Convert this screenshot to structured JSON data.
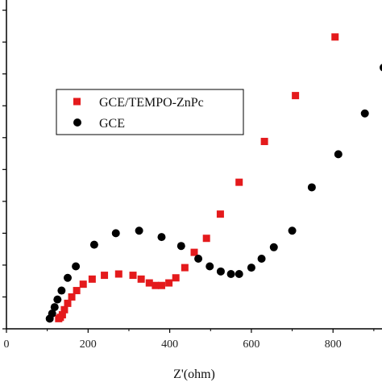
{
  "chart_data": {
    "type": "scatter",
    "title": "",
    "xlabel": "Z'(ohm)",
    "ylabel": "",
    "xlim": [
      0,
      920
    ],
    "ylim": [
      0,
      1290
    ],
    "x_ticks": [
      0,
      200,
      400,
      600,
      800
    ],
    "x_tick_labels": [
      "0",
      "200",
      "400",
      "600",
      "800"
    ],
    "y_minor_ticks": [
      0,
      125,
      250,
      375,
      500,
      625,
      750,
      875,
      1000,
      1125,
      1250
    ],
    "grid": false,
    "legend_position": "upper-left",
    "series": [
      {
        "name": "GCE/TEMPO-ZnPc",
        "marker": "square",
        "color": "#e41a1c",
        "points": [
          [
            128,
            40
          ],
          [
            132,
            45
          ],
          [
            137,
            55
          ],
          [
            142,
            75
          ],
          [
            150,
            100
          ],
          [
            160,
            125
          ],
          [
            172,
            150
          ],
          [
            188,
            175
          ],
          [
            210,
            195
          ],
          [
            240,
            210
          ],
          [
            275,
            215
          ],
          [
            310,
            210
          ],
          [
            330,
            195
          ],
          [
            350,
            180
          ],
          [
            365,
            170
          ],
          [
            380,
            170
          ],
          [
            398,
            180
          ],
          [
            415,
            200
          ],
          [
            437,
            240
          ],
          [
            460,
            300
          ],
          [
            490,
            355
          ],
          [
            524,
            450
          ],
          [
            570,
            575
          ],
          [
            632,
            735
          ],
          [
            708,
            915
          ],
          [
            805,
            1145
          ]
        ]
      },
      {
        "name": "GCE",
        "marker": "circle",
        "color": "#000000",
        "points": [
          [
            106,
            40
          ],
          [
            112,
            60
          ],
          [
            118,
            85
          ],
          [
            125,
            115
          ],
          [
            135,
            150
          ],
          [
            150,
            200
          ],
          [
            170,
            245
          ],
          [
            215,
            330
          ],
          [
            268,
            375
          ],
          [
            325,
            385
          ],
          [
            380,
            360
          ],
          [
            428,
            325
          ],
          [
            470,
            275
          ],
          [
            498,
            245
          ],
          [
            525,
            225
          ],
          [
            550,
            215
          ],
          [
            570,
            215
          ],
          [
            600,
            240
          ],
          [
            625,
            275
          ],
          [
            655,
            320
          ],
          [
            700,
            385
          ],
          [
            748,
            555
          ],
          [
            813,
            685
          ],
          [
            878,
            845
          ],
          [
            924,
            1025
          ]
        ]
      }
    ]
  }
}
